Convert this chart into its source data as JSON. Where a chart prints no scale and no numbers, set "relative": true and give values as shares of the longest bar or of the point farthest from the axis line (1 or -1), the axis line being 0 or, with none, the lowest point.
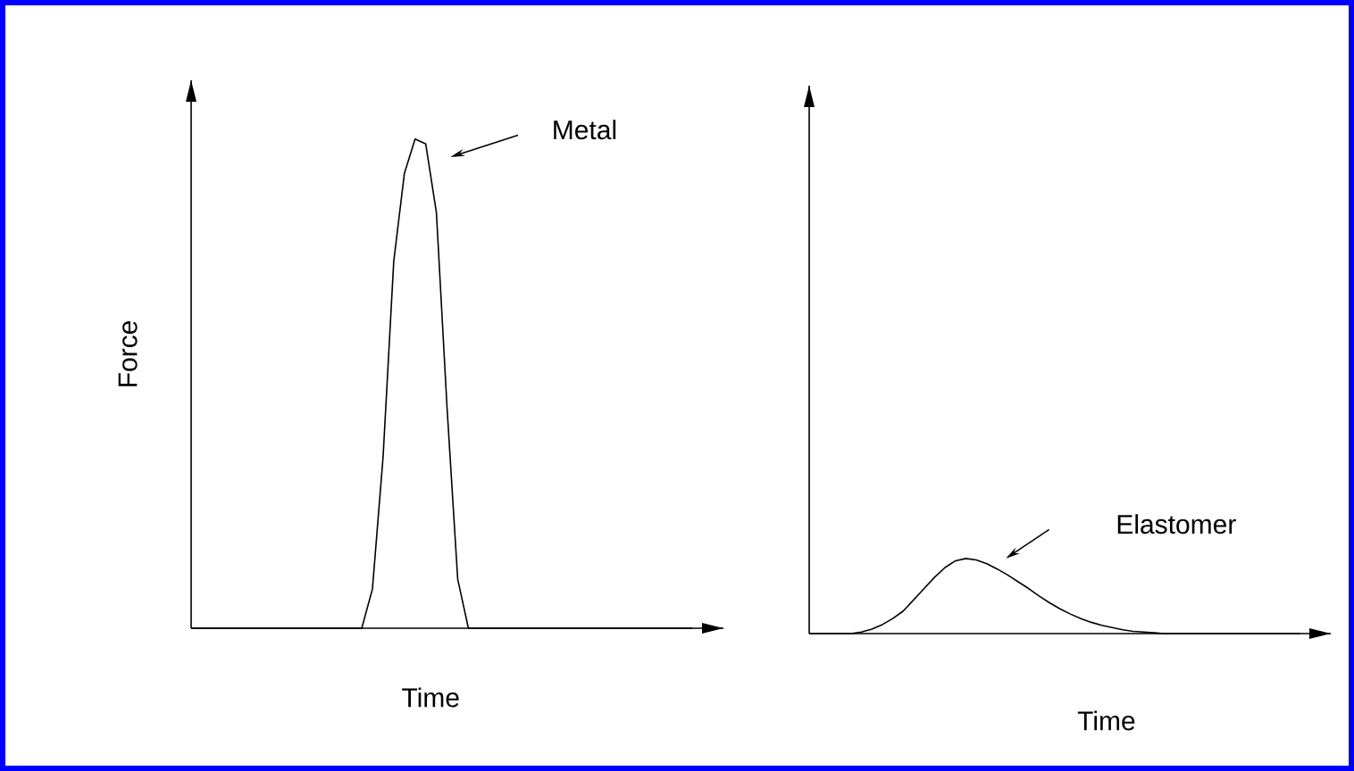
{
  "chart_data": [
    {
      "type": "line",
      "relative": true,
      "ylabel": "Force",
      "xlabel": "Time",
      "marker": "none",
      "line_style": "solid",
      "categories": [
        null,
        null,
        null,
        null,
        null,
        null,
        null,
        null,
        null,
        null,
        null,
        null,
        null,
        null,
        null,
        null,
        null,
        null,
        null,
        null,
        null,
        null,
        null,
        null,
        null,
        null,
        null,
        null,
        null,
        null,
        null,
        null,
        null,
        null,
        null,
        null,
        null,
        null,
        null,
        null,
        null,
        null,
        null,
        null,
        null,
        null,
        null,
        null
      ],
      "series": [
        {
          "color": "#000000",
          "values": [
            0,
            0,
            0,
            0,
            0,
            0,
            0,
            0,
            0,
            0,
            0,
            0,
            0,
            0,
            0,
            0,
            0,
            0.08,
            0.35,
            0.75,
            0.93,
            1,
            0.99,
            0.85,
            0.45,
            0.1,
            0,
            0,
            0,
            0,
            0,
            0,
            0,
            0,
            0,
            0,
            0,
            0,
            0,
            0,
            0,
            0,
            0,
            0,
            0,
            0,
            0,
            0
          ]
        }
      ],
      "annotations": [
        "Metal"
      ]
    },
    {
      "type": "line",
      "relative": true,
      "xlabel": "Time",
      "marker": "none",
      "line_style": "solid",
      "categories": [
        null,
        null,
        null,
        null,
        null,
        null,
        null,
        null,
        null,
        null,
        null,
        null,
        null,
        null,
        null,
        null,
        null,
        null,
        null,
        null,
        null,
        null,
        null,
        null,
        null,
        null,
        null,
        null,
        null,
        null,
        null,
        null,
        null,
        null,
        null,
        null,
        null,
        null,
        null,
        null,
        null,
        null,
        null,
        null,
        null,
        null,
        null,
        null
      ],
      "series": [
        {
          "color": "#000000",
          "values": [
            0,
            0,
            0,
            0,
            0,
            0.02,
            0.06,
            0.12,
            0.2,
            0.3,
            0.45,
            0.6,
            0.75,
            0.88,
            0.97,
            1,
            0.98,
            0.93,
            0.86,
            0.78,
            0.69,
            0.6,
            0.5,
            0.41,
            0.33,
            0.26,
            0.2,
            0.15,
            0.11,
            0.08,
            0.05,
            0.03,
            0.02,
            0.01,
            0,
            0,
            0,
            0,
            0,
            0,
            0,
            0,
            0,
            0,
            0,
            0,
            0,
            0
          ]
        }
      ],
      "annotations": [
        "Elastomer"
      ]
    }
  ]
}
